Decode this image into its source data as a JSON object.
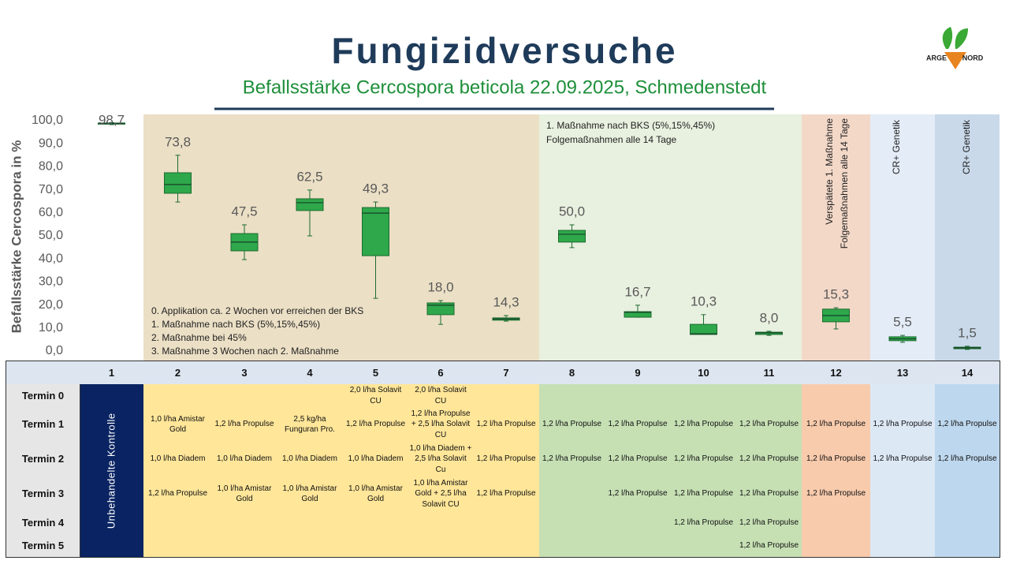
{
  "header": {
    "title": "Fungizidversuche",
    "subtitle": "Befallsstärke Cercospora beticola 22.09.2025, Schmedenstedt",
    "logo_text": [
      "ARGE",
      "NORD"
    ]
  },
  "chart_data": {
    "type": "box",
    "y_label": "Befallsstärke Cercospora in %",
    "categories": [
      "1",
      "2",
      "3",
      "4",
      "5",
      "6",
      "7",
      "8",
      "9",
      "10",
      "11",
      "12",
      "13",
      "14"
    ],
    "ylim": [
      0,
      100
    ],
    "yticks": [
      {
        "value": 0,
        "label": "0,0"
      },
      {
        "value": 10,
        "label": "10,0"
      },
      {
        "value": 20,
        "label": "20,0"
      },
      {
        "value": 30,
        "label": "30,0"
      },
      {
        "value": 40,
        "label": "40,0"
      },
      {
        "value": 50,
        "label": "50,0"
      },
      {
        "value": 60,
        "label": "60,0"
      },
      {
        "value": 70,
        "label": "70,0"
      },
      {
        "value": 80,
        "label": "80,0"
      },
      {
        "value": 90,
        "label": "90,0"
      },
      {
        "value": 100,
        "label": "100,0"
      }
    ],
    "color": "#2ea84a",
    "edge_color": "#1d6b30",
    "boxes": [
      {
        "min": 98.3,
        "q1": 98.5,
        "median": 98.8,
        "q3": 99.0,
        "max": 99.2
      },
      {
        "min": 64.7,
        "q1": 68.5,
        "median": 72.3,
        "q3": 77.4,
        "max": 85.0
      },
      {
        "min": 39.7,
        "q1": 43.5,
        "median": 47.3,
        "q3": 51.0,
        "max": 54.8
      },
      {
        "min": 50.0,
        "q1": 61.0,
        "median": 64.4,
        "q3": 66.1,
        "max": 69.9
      },
      {
        "min": 22.9,
        "q1": 41.4,
        "median": 59.9,
        "q3": 62.3,
        "max": 64.7
      },
      {
        "min": 11.6,
        "q1": 15.8,
        "median": 19.9,
        "q3": 20.9,
        "max": 21.9
      },
      {
        "min": 13.0,
        "q1": 13.4,
        "median": 13.9,
        "q3": 14.4,
        "max": 15.4
      },
      {
        "min": 44.9,
        "q1": 47.3,
        "median": 50.7,
        "q3": 52.4,
        "max": 54.8
      },
      {
        "min": 14.7,
        "q1": 14.7,
        "median": 16.8,
        "q3": 17.1,
        "max": 19.9
      },
      {
        "min": 7.2,
        "q1": 7.2,
        "median": 7.5,
        "q3": 11.6,
        "max": 15.8
      },
      {
        "min": 6.8,
        "q1": 7.2,
        "median": 7.9,
        "q3": 8.2,
        "max": 8.6
      },
      {
        "min": 9.6,
        "q1": 12.7,
        "median": 15.4,
        "q3": 18.2,
        "max": 18.8
      },
      {
        "min": 3.8,
        "q1": 4.5,
        "median": 5.3,
        "q3": 6.2,
        "max": 6.8
      },
      {
        "min": 0.7,
        "q1": 1.0,
        "median": 1.4,
        "q3": 1.7,
        "max": 2.1
      }
    ],
    "means": [
      98.7,
      73.8,
      47.5,
      62.5,
      49.3,
      18.0,
      14.3,
      50.0,
      16.7,
      10.3,
      8.0,
      15.3,
      5.5,
      1.5
    ],
    "value_labels": [
      "98,7",
      "73,8",
      "47,5",
      "62,5",
      "49,3",
      "18,0",
      "14,3",
      "50,0",
      "16,7",
      "10,3",
      "8,0",
      "15,3",
      "5,5",
      "1,5"
    ],
    "annotations": {
      "yellow": [
        "0. Applikation ca. 2 Wochen vor erreichen der BKS",
        "1. Maßnahme nach BKS (5%,15%,45%)",
        "2. Maßnahme bei 45%",
        "3. Maßnahme 3 Wochen nach 2. Maßnahme"
      ],
      "green": [
        "1. Maßnahme nach BKS (5%,15%,45%)",
        "Folgemaßnahmen alle 14 Tage"
      ],
      "peach": [
        "Verspätete 1. Maßnahme",
        "Folgemaßnahmen alle 14 Tage"
      ],
      "blue_light": "CR+ Genetik",
      "blue": "CR+ Genetik"
    }
  },
  "table": {
    "control_label": "Unbehandelte Kontrolle",
    "rows": [
      {
        "label": "Termin 0",
        "cells": [
          null,
          null,
          null,
          "2,0 l/ha Solavit CU",
          "2,0 l/ha Solavit CU",
          null,
          null,
          null,
          null,
          null,
          null,
          null,
          null
        ]
      },
      {
        "label": "Termin 1",
        "cells": [
          "1,0 l/ha Amistar Gold",
          "1,2 l/ha Propulse",
          "2,5 kg/ha Funguran Pro.",
          "1,2 l/ha Propulse",
          "1,2 l/ha Propulse + 2,5 l/ha Solavit CU",
          "1,2 l/ha Propulse",
          "1,2 l/ha Propulse",
          "1,2 l/ha Propulse",
          "1,2 l/ha Propulse",
          "1,2 l/ha Propulse",
          "1,2 l/ha Propulse",
          "1,2 l/ha Propulse",
          "1,2 l/ha Propulse"
        ]
      },
      {
        "label": "Termin 2",
        "cells": [
          "1,0 l/ha Diadem",
          "1,0 l/ha Diadem",
          "1,0 l/ha Diadem",
          "1,0 l/ha Diadem",
          "1,0 l/ha Diadem + 2,5 l/ha Solavit Cu",
          "1,2 l/ha Propulse",
          "1,2 l/ha Propulse",
          "1,2 l/ha Propulse",
          "1,2 l/ha Propulse",
          "1,2 l/ha Propulse",
          "1,2 l/ha Propulse",
          "1,2 l/ha Propulse",
          "1,2 l/ha Propulse"
        ]
      },
      {
        "label": "Termin 3",
        "cells": [
          "1,2 l/ha Propulse",
          "1,0 l/ha Amistar Gold",
          "1,0 l/ha Amistar Gold",
          "1,0 l/ha Amistar Gold",
          "1,0 l/ha Amistar Gold + 2,5 l/ha Solavit CU",
          "1,2 l/ha Propulse",
          null,
          "1,2 l/ha Propulse",
          "1,2 l/ha Propulse",
          "1,2 l/ha Propulse",
          "1,2 l/ha Propulse",
          null,
          null
        ]
      },
      {
        "label": "Termin 4",
        "cells": [
          null,
          null,
          null,
          null,
          null,
          null,
          null,
          null,
          "1,2 l/ha Propulse",
          "1,2 l/ha Propulse",
          null,
          null,
          null
        ]
      },
      {
        "label": "Termin 5",
        "cells": [
          null,
          null,
          null,
          null,
          null,
          null,
          null,
          null,
          null,
          "1,2 l/ha Propulse",
          null,
          null,
          null
        ]
      }
    ]
  }
}
